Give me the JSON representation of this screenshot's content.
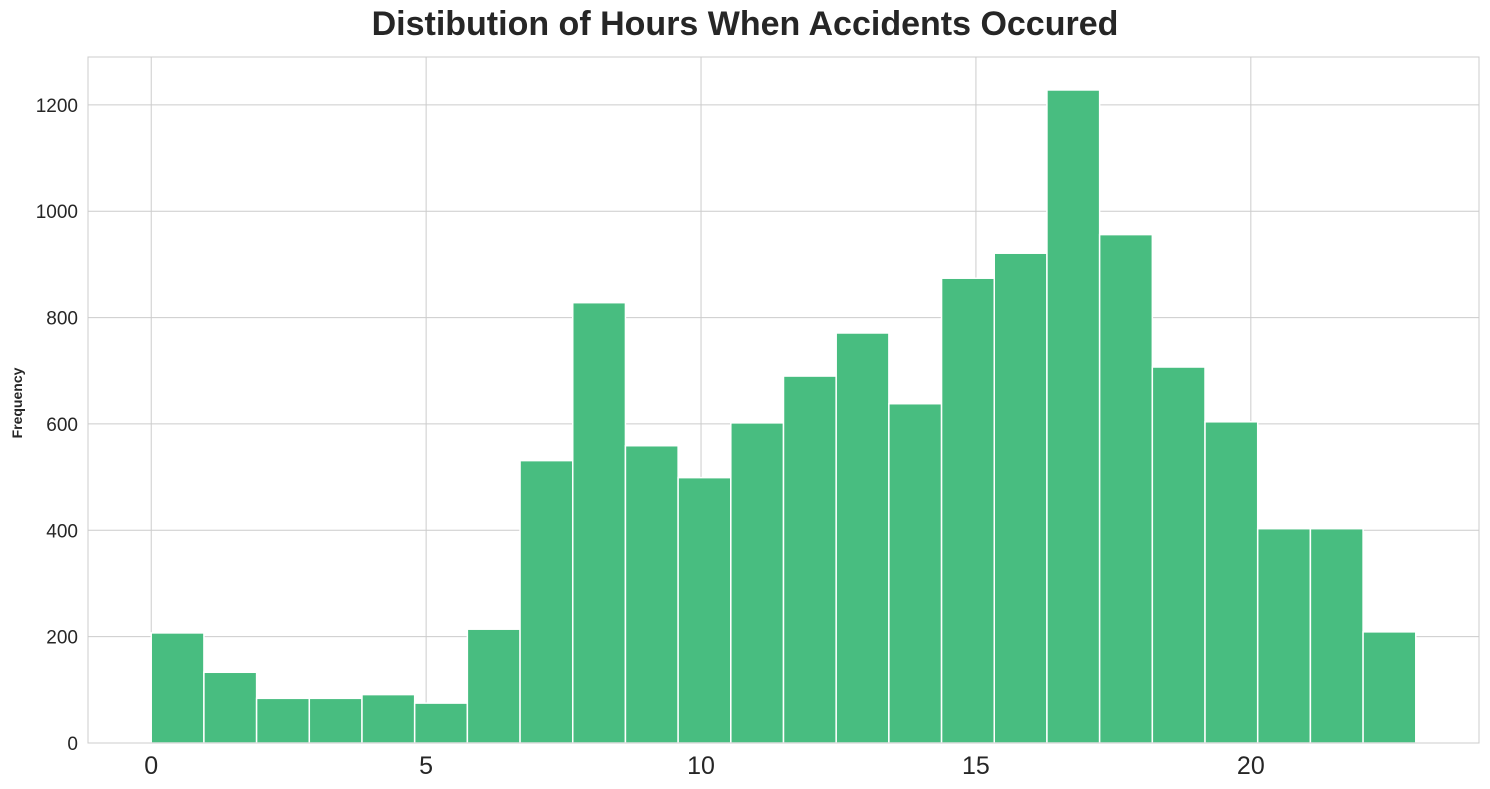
{
  "chart_data": {
    "type": "bar",
    "title": "Distibution of Hours When Accidents Occured",
    "xlabel": "",
    "ylabel": "Frequency",
    "xlim": [
      -1.15,
      24.15
    ],
    "ylim": [
      0,
      1290
    ],
    "xticks": [
      0,
      5,
      10,
      15,
      20
    ],
    "yticks": [
      0,
      200,
      400,
      600,
      800,
      1000,
      1200
    ],
    "grid": true,
    "color": "#48bd80",
    "bin_start": 0,
    "bin_end": 23,
    "values": [
      207,
      133,
      84,
      84,
      91,
      75,
      214,
      531,
      828,
      559,
      499,
      602,
      690,
      771,
      638,
      874,
      921,
      1228,
      956,
      707,
      604,
      403,
      403,
      209
    ]
  }
}
